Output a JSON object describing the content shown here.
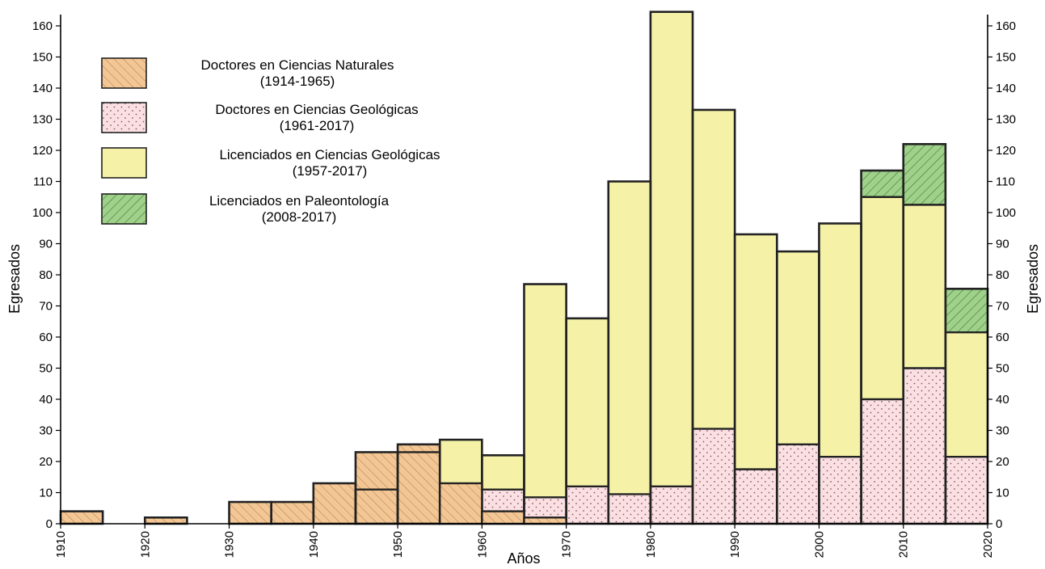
{
  "chart_data": {
    "type": "bar",
    "stacked": true,
    "xlabel": "Años",
    "ylabel_left": "Egresados",
    "ylabel_right": "Egresados",
    "xlim": [
      1910,
      2020
    ],
    "ylim": [
      0,
      165
    ],
    "x_ticks": [
      1910,
      1920,
      1930,
      1940,
      1950,
      1960,
      1970,
      1980,
      1990,
      2000,
      2010,
      2020
    ],
    "y_ticks": [
      0,
      10,
      20,
      30,
      40,
      50,
      60,
      70,
      80,
      90,
      100,
      110,
      120,
      130,
      140,
      150,
      160
    ],
    "bin_width": 5,
    "bins": [
      1910,
      1915,
      1920,
      1925,
      1930,
      1935,
      1940,
      1945,
      1950,
      1955,
      1960,
      1965,
      1970,
      1975,
      1980,
      1985,
      1990,
      1995,
      2000,
      2005,
      2010,
      2015
    ],
    "series": [
      {
        "name": "Doctores en Ciencias Naturales",
        "period": "(1914-1965)",
        "color": "#f3c795",
        "pattern": "diag-orange",
        "values": [
          4,
          0,
          2,
          0,
          7,
          7,
          13,
          23,
          25.5,
          0,
          0,
          0,
          0,
          0,
          0,
          0,
          0,
          0,
          0,
          0,
          0,
          0
        ]
      },
      {
        "name": "Doctores en Ciencias Geológicas",
        "period": "(1961-2017)",
        "color": "#fbe0e3",
        "pattern": "dots-pink",
        "values": [
          0,
          0,
          0,
          0,
          0,
          0,
          0,
          0,
          0,
          0,
          11,
          8.5,
          12,
          9.5,
          12,
          30.5,
          17.5,
          25.5,
          21.5,
          40,
          50,
          21.5
        ]
      },
      {
        "name": "Licenciados en Ciencias Geológicas",
        "period": "(1957-2017)",
        "color": "#f5f2a8",
        "pattern": "solid-yellow",
        "values": [
          0,
          0,
          0,
          0,
          0,
          0,
          0,
          0,
          0,
          27,
          11,
          68.5,
          54,
          100.5,
          152.5,
          102.5,
          75.5,
          62,
          75,
          65,
          52.5,
          40
        ]
      },
      {
        "name": "Licenciados en Paleontología",
        "period": "(2008-2017)",
        "color": "#9fd18a",
        "pattern": "diag-green",
        "values": [
          0,
          0,
          0,
          0,
          0,
          0,
          0,
          0,
          0,
          0,
          0,
          0,
          0,
          0,
          0,
          0,
          0,
          0,
          0,
          8.5,
          19.5,
          14
        ]
      }
    ],
    "overlays": [
      {
        "series": "Doctores en Ciencias Naturales",
        "note": "outlined totals of lower class inside stacked bars",
        "values": [
          0,
          0,
          0,
          0,
          0,
          0,
          0,
          11,
          23,
          13,
          4,
          2,
          0,
          0,
          0,
          0,
          0,
          0,
          0,
          0,
          0,
          0
        ]
      }
    ]
  }
}
